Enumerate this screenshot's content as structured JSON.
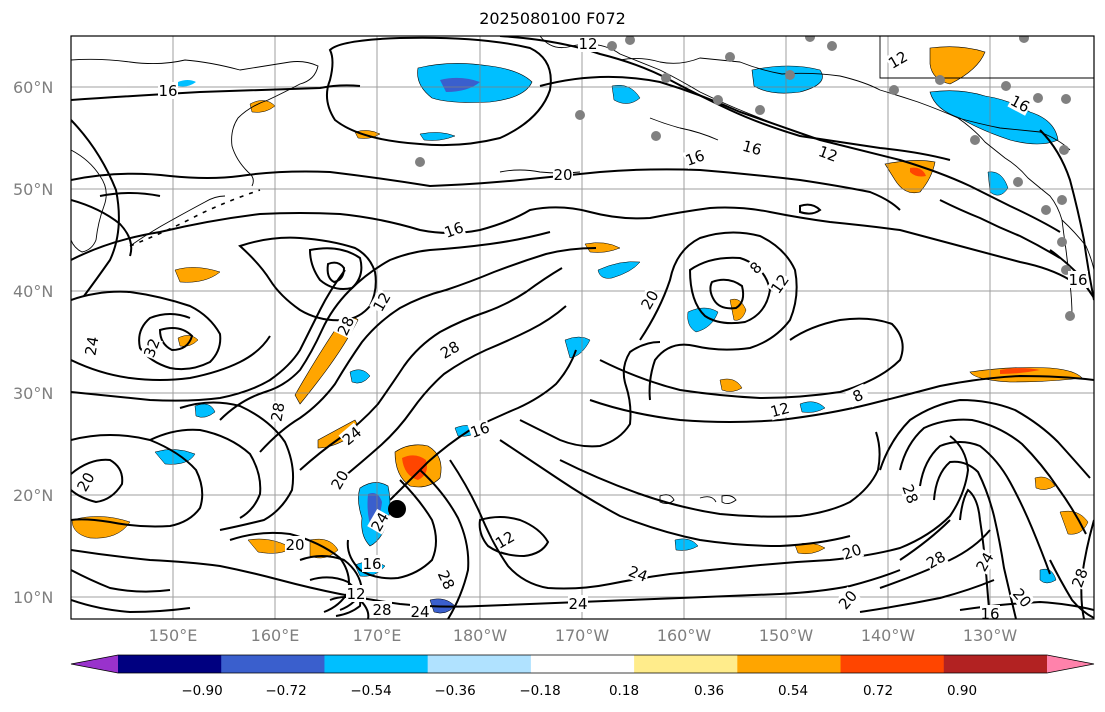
{
  "title": "2025080100 F072",
  "lat_labels": [
    "60°N",
    "50°N",
    "40°N",
    "30°N",
    "20°N",
    "10°N"
  ],
  "lon_labels": [
    "150°E",
    "160°E",
    "170°E",
    "180°W",
    "170°W",
    "160°W",
    "150°W",
    "140°W",
    "130°W"
  ],
  "colorbar": {
    "ticks": [
      "−0.90",
      "−0.72",
      "−0.54",
      "−0.36",
      "−0.18",
      "0.18",
      "0.36",
      "0.54",
      "0.72",
      "0.90"
    ],
    "colors": [
      "#9932cc",
      "#000080",
      "#3a5fcd",
      "#00bfff",
      "#b0e2ff",
      "#ffffff",
      "#ffec8b",
      "#ffa500",
      "#ff4500",
      "#b22222",
      "#ff82ab"
    ]
  },
  "contour_labels": [
    "12",
    "16",
    "16",
    "16",
    "12",
    "20",
    "16",
    "12",
    "28",
    "32",
    "24",
    "28",
    "20",
    "8",
    "12",
    "16",
    "12",
    "8",
    "12",
    "16",
    "24",
    "20",
    "20",
    "24",
    "28",
    "12",
    "16",
    "20",
    "12",
    "24",
    "28",
    "20",
    "28",
    "24",
    "28",
    "24",
    "20",
    "16",
    "28",
    "16",
    "24",
    "20",
    "28"
  ]
}
